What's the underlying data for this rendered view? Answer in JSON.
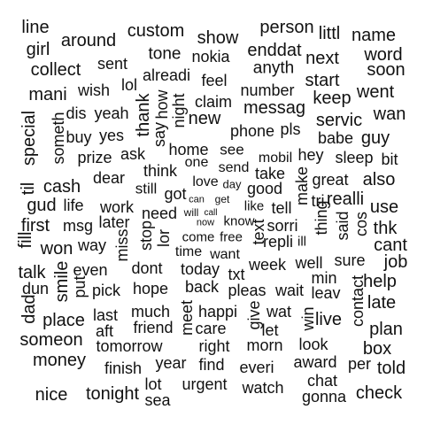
{
  "colors": {
    "background": "#ffffff",
    "text": "#111111"
  },
  "words": [
    {
      "text": "line"
    },
    {
      "text": "custom"
    },
    {
      "text": "person"
    },
    {
      "text": "littl"
    },
    {
      "text": "name"
    },
    {
      "text": "girl"
    },
    {
      "text": "around"
    },
    {
      "text": "show"
    },
    {
      "text": "tone"
    },
    {
      "text": "enddat"
    },
    {
      "text": "nokia"
    },
    {
      "text": "word"
    },
    {
      "text": "collect"
    },
    {
      "text": "sent"
    },
    {
      "text": "next"
    },
    {
      "text": "alreadi"
    },
    {
      "text": "anyth"
    },
    {
      "text": "soon"
    },
    {
      "text": "mani"
    },
    {
      "text": "wish"
    },
    {
      "text": "lol"
    },
    {
      "text": "feel"
    },
    {
      "text": "start"
    },
    {
      "text": "number"
    },
    {
      "text": "went"
    },
    {
      "text": "keep"
    },
    {
      "text": "claim"
    },
    {
      "text": "messag"
    },
    {
      "text": "wan"
    },
    {
      "text": "yeah"
    },
    {
      "text": "dis"
    },
    {
      "text": "new"
    },
    {
      "text": "servic"
    },
    {
      "text": "thank"
    },
    {
      "text": "say"
    },
    {
      "text": "how"
    },
    {
      "text": "night"
    },
    {
      "text": "special"
    },
    {
      "text": "someth"
    },
    {
      "text": "buy"
    },
    {
      "text": "yes"
    },
    {
      "text": "phone"
    },
    {
      "text": "pls"
    },
    {
      "text": "babe"
    },
    {
      "text": "guy"
    },
    {
      "text": "home"
    },
    {
      "text": "see"
    },
    {
      "text": "prize"
    },
    {
      "text": "ask"
    },
    {
      "text": "mobil"
    },
    {
      "text": "hey"
    },
    {
      "text": "sleep"
    },
    {
      "text": "bit"
    },
    {
      "text": "one"
    },
    {
      "text": "send"
    },
    {
      "text": "think"
    },
    {
      "text": "dear"
    },
    {
      "text": "take"
    },
    {
      "text": "great"
    },
    {
      "text": "also"
    },
    {
      "text": "cash"
    },
    {
      "text": "love"
    },
    {
      "text": "day"
    },
    {
      "text": "good"
    },
    {
      "text": "til"
    },
    {
      "text": "still"
    },
    {
      "text": "got"
    },
    {
      "text": "make"
    },
    {
      "text": "realli"
    },
    {
      "text": "can"
    },
    {
      "text": "get"
    },
    {
      "text": "tri"
    },
    {
      "text": "gud"
    },
    {
      "text": "life"
    },
    {
      "text": "work"
    },
    {
      "text": "like"
    },
    {
      "text": "tell"
    },
    {
      "text": "use"
    },
    {
      "text": "call"
    },
    {
      "text": "will"
    },
    {
      "text": "need"
    },
    {
      "text": "know"
    },
    {
      "text": "thing"
    },
    {
      "text": "first"
    },
    {
      "text": "msg"
    },
    {
      "text": "later"
    },
    {
      "text": "now"
    },
    {
      "text": "sorri"
    },
    {
      "text": "said"
    },
    {
      "text": "cos"
    },
    {
      "text": "thk"
    },
    {
      "text": "come"
    },
    {
      "text": "free"
    },
    {
      "text": "text"
    },
    {
      "text": "repli"
    },
    {
      "text": "ill"
    },
    {
      "text": "stop"
    },
    {
      "text": "lor"
    },
    {
      "text": "fill"
    },
    {
      "text": "won"
    },
    {
      "text": "way"
    },
    {
      "text": "miss"
    },
    {
      "text": "time"
    },
    {
      "text": "want"
    },
    {
      "text": "cant"
    },
    {
      "text": "week"
    },
    {
      "text": "well"
    },
    {
      "text": "sure"
    },
    {
      "text": "job"
    },
    {
      "text": "dont"
    },
    {
      "text": "today"
    },
    {
      "text": "talk"
    },
    {
      "text": "even"
    },
    {
      "text": "txt"
    },
    {
      "text": "min"
    },
    {
      "text": "smile"
    },
    {
      "text": "put"
    },
    {
      "text": "hope"
    },
    {
      "text": "back"
    },
    {
      "text": "pleas"
    },
    {
      "text": "wait"
    },
    {
      "text": "leav"
    },
    {
      "text": "help"
    },
    {
      "text": "dun"
    },
    {
      "text": "pick"
    },
    {
      "text": "contact"
    },
    {
      "text": "dad"
    },
    {
      "text": "late"
    },
    {
      "text": "give"
    },
    {
      "text": "much"
    },
    {
      "text": "happi"
    },
    {
      "text": "wat"
    },
    {
      "text": "win"
    },
    {
      "text": "meet"
    },
    {
      "text": "last"
    },
    {
      "text": "place"
    },
    {
      "text": "live"
    },
    {
      "text": "friend"
    },
    {
      "text": "let"
    },
    {
      "text": "aft"
    },
    {
      "text": "care"
    },
    {
      "text": "plan"
    },
    {
      "text": "someon"
    },
    {
      "text": "tomorrow"
    },
    {
      "text": "right"
    },
    {
      "text": "morn"
    },
    {
      "text": "look"
    },
    {
      "text": "box"
    },
    {
      "text": "money"
    },
    {
      "text": "year"
    },
    {
      "text": "find"
    },
    {
      "text": "everi"
    },
    {
      "text": "award"
    },
    {
      "text": "per"
    },
    {
      "text": "told"
    },
    {
      "text": "finish"
    },
    {
      "text": "chat"
    },
    {
      "text": "lot"
    },
    {
      "text": "urgent"
    },
    {
      "text": "watch"
    },
    {
      "text": "nice"
    },
    {
      "text": "tonight"
    },
    {
      "text": "sea"
    },
    {
      "text": "gonna"
    },
    {
      "text": "check"
    }
  ]
}
